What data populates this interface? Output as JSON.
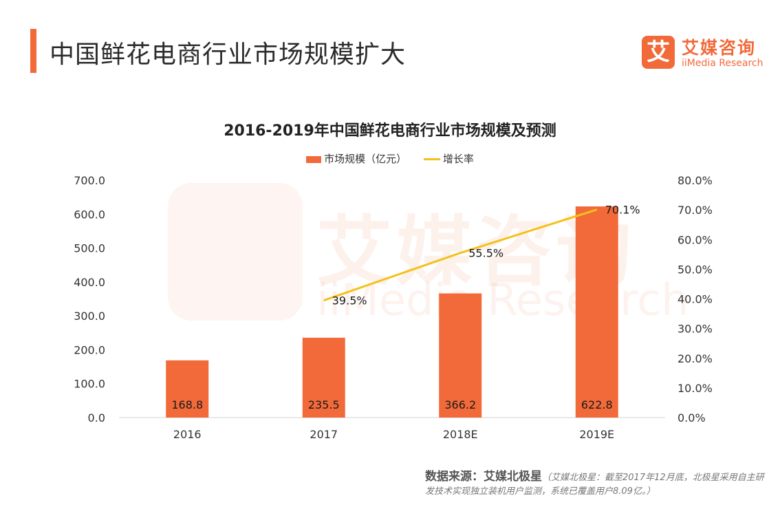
{
  "page": {
    "title": "中国鲜花电商行业市场规模扩大"
  },
  "logo": {
    "mark": "艾",
    "cn": "艾媒咨询",
    "en": "iiMedia Research"
  },
  "watermark": {
    "mark": "艾",
    "cn": "艾媒咨询",
    "en": "iiMedia Research"
  },
  "source": {
    "lead": "数据来源：艾媒北极星",
    "note": "（艾媒北极星：截至2017年12月底，北极星采用自主研发技术实现独立装机用户监测，系统已覆盖用户8.09亿。）"
  },
  "colors": {
    "accent": "#f26a3a",
    "line": "#f5c018"
  },
  "chart_data": {
    "type": "bar",
    "title": "2016-2019年中国鲜花电商行业市场规模及预测",
    "categories": [
      "2016",
      "2017",
      "2018E",
      "2019E"
    ],
    "series": [
      {
        "name": "市场规模（亿元）",
        "type": "bar",
        "axis": "left",
        "values": [
          168.8,
          235.5,
          366.2,
          622.8
        ],
        "labels": [
          "168.8",
          "235.5",
          "366.2",
          "622.8"
        ]
      },
      {
        "name": "增长率",
        "type": "line",
        "axis": "right",
        "values": [
          null,
          39.5,
          55.5,
          70.1
        ],
        "labels": [
          "",
          "39.5%",
          "55.5%",
          "70.1%"
        ]
      }
    ],
    "y_left": {
      "range": [
        0,
        700
      ],
      "ticks": [
        "0.0",
        "100.0",
        "200.0",
        "300.0",
        "400.0",
        "500.0",
        "600.0",
        "700.0"
      ]
    },
    "y_right": {
      "range": [
        0,
        80
      ],
      "ticks": [
        "0.0%",
        "10.0%",
        "20.0%",
        "30.0%",
        "40.0%",
        "50.0%",
        "60.0%",
        "70.0%",
        "80.0%"
      ]
    },
    "grid": false,
    "legend": "top-center"
  }
}
